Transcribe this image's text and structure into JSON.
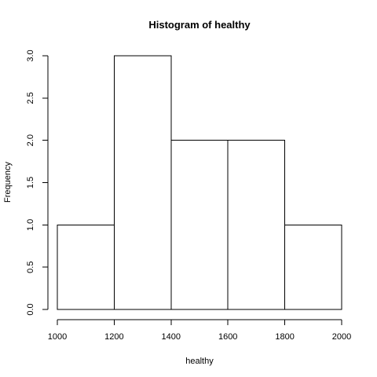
{
  "chart_data": {
    "type": "bar",
    "title": "Histogram of healthy",
    "xlabel": "healthy",
    "ylabel": "Frequency",
    "bins": [
      {
        "x0": 1000,
        "x1": 1200,
        "count": 1
      },
      {
        "x0": 1200,
        "x1": 1400,
        "count": 3
      },
      {
        "x0": 1400,
        "x1": 1600,
        "count": 2
      },
      {
        "x0": 1600,
        "x1": 1800,
        "count": 2
      },
      {
        "x0": 1800,
        "x1": 2000,
        "count": 1
      }
    ],
    "xlim": [
      1000,
      2000
    ],
    "ylim": [
      0,
      3
    ],
    "xticks": [
      "1000",
      "1200",
      "1400",
      "1600",
      "1800",
      "2000"
    ],
    "yticks": [
      "0.0",
      "0.5",
      "1.0",
      "1.5",
      "2.0",
      "2.5",
      "3.0"
    ],
    "grid": false,
    "bar_fill": "#ffffff",
    "bar_stroke": "#000000"
  }
}
